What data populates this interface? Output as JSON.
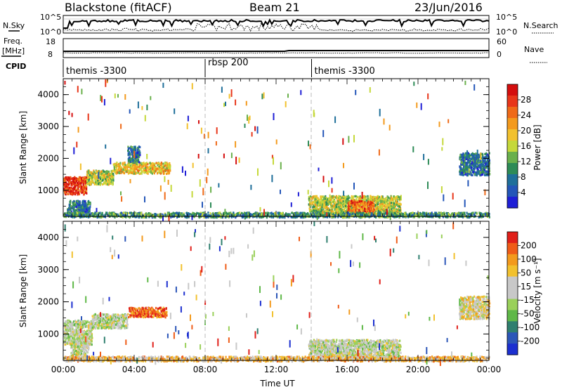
{
  "header": {
    "station": "Blackstone (fitACF)",
    "beam": "Beam 21",
    "date": "23/Jun/2016"
  },
  "top_panels": {
    "nsky": {
      "label": "N.Sky",
      "left_ticks": [
        "10^5",
        "10^0"
      ]
    },
    "nsearch": {
      "label": "N.Search",
      "right_ticks": [
        "10^5",
        "10^0"
      ]
    },
    "freq": {
      "label_line1": "Freq.",
      "label_line2": "[MHz]",
      "left_ticks": [
        "18",
        "8"
      ]
    },
    "nave": {
      "label": "Nave",
      "right_ticks": [
        "60",
        "0"
      ]
    },
    "cpid": {
      "label": "CPID",
      "segments": [
        {
          "name": "themis -3300",
          "start_hour": 0,
          "end_hour": 8
        },
        {
          "name": "rbsp 200",
          "start_hour": 8,
          "end_hour": 14
        },
        {
          "name": "themis -3300",
          "start_hour": 14,
          "end_hour": 24
        }
      ]
    }
  },
  "chart_data": [
    {
      "type": "heatmap",
      "name_role": "power-panel",
      "ylabel": "Slant Range [km]",
      "xlabel": "",
      "xlim_hours": [
        0,
        24
      ],
      "ylim": [
        180,
        4500
      ],
      "y_ticks": [
        "1000",
        "2000",
        "3000",
        "4000"
      ],
      "x_ticks": [
        "00:00",
        "04:00",
        "08:00",
        "12:00",
        "16:00",
        "20:00",
        "00:00"
      ],
      "colorbar": {
        "label": "Power [dB]",
        "ticks": [
          "28",
          "24",
          "20",
          "16",
          "12",
          "8",
          "4"
        ],
        "colors": [
          "#1f1fd6",
          "#2456b8",
          "#1f6f9a",
          "#2e8b57",
          "#6ab04c",
          "#c5d83a",
          "#f2c12e",
          "#f39a1d",
          "#ef6a18",
          "#e8361a",
          "#d40e0e"
        ]
      },
      "features": [
        {
          "start_hour": 0.0,
          "end_hour": 1.3,
          "range_low": 900,
          "range_high": 1450,
          "level": 9
        },
        {
          "start_hour": 1.3,
          "end_hour": 2.8,
          "range_low": 1200,
          "range_high": 1650,
          "level": 5
        },
        {
          "start_hour": 2.8,
          "end_hour": 6.0,
          "range_low": 1550,
          "range_high": 1900,
          "level": 6
        },
        {
          "start_hour": 3.6,
          "end_hour": 4.3,
          "range_low": 1900,
          "range_high": 2400,
          "level": 2
        },
        {
          "start_hour": 0.2,
          "end_hour": 1.5,
          "range_low": 200,
          "range_high": 700,
          "level": 2
        },
        {
          "start_hour": 13.8,
          "end_hour": 19.0,
          "range_low": 250,
          "range_high": 850,
          "level": 5
        },
        {
          "start_hour": 16.0,
          "end_hour": 17.5,
          "range_low": 300,
          "range_high": 700,
          "level": 8
        },
        {
          "start_hour": 22.3,
          "end_hour": 24.0,
          "range_low": 1500,
          "range_high": 2200,
          "level": 2
        },
        {
          "start_hour": 0.0,
          "end_hour": 24.0,
          "range_low": 180,
          "range_high": 330,
          "level": 3
        }
      ]
    },
    {
      "type": "heatmap",
      "name_role": "velocity-panel",
      "ylabel": "Slant Range [km]",
      "xlabel": "Time UT",
      "xlim_hours": [
        0,
        24
      ],
      "ylim": [
        180,
        4500
      ],
      "y_ticks": [
        "1000",
        "2000",
        "3000",
        "4000"
      ],
      "x_ticks": [
        "00:00",
        "04:00",
        "08:00",
        "12:00",
        "16:00",
        "20:00",
        "00:00"
      ],
      "colorbar": {
        "label": "Velocity [m s⁻¹]",
        "ticks": [
          "200",
          "100",
          "50",
          "15",
          "-15",
          "-50",
          "-100",
          "-200"
        ],
        "colors": [
          "#1c2fd0",
          "#2c56b8",
          "#2f7f6f",
          "#5fb848",
          "#9ad05a",
          "#c8c8c8",
          "#c8c8c8",
          "#f2c12e",
          "#f39a1d",
          "#ef5c18",
          "#e0201a"
        ]
      },
      "features": [
        {
          "start_hour": 0.0,
          "end_hour": 1.6,
          "range_low": 700,
          "range_high": 1450,
          "level": 5
        },
        {
          "start_hour": 0.4,
          "end_hour": 1.4,
          "range_low": 200,
          "range_high": 800,
          "level": 5
        },
        {
          "start_hour": 1.6,
          "end_hour": 3.6,
          "range_low": 1200,
          "range_high": 1650,
          "level": 5
        },
        {
          "start_hour": 3.6,
          "end_hour": 5.8,
          "range_low": 1550,
          "range_high": 1850,
          "level": 9
        },
        {
          "start_hour": 13.8,
          "end_hour": 19.0,
          "range_low": 250,
          "range_high": 850,
          "level": 5
        },
        {
          "start_hour": 22.3,
          "end_hour": 24.0,
          "range_low": 1500,
          "range_high": 2200,
          "level": 6
        },
        {
          "start_hour": 0.0,
          "end_hour": 24.0,
          "range_low": 180,
          "range_high": 330,
          "level": 7
        }
      ]
    }
  ]
}
